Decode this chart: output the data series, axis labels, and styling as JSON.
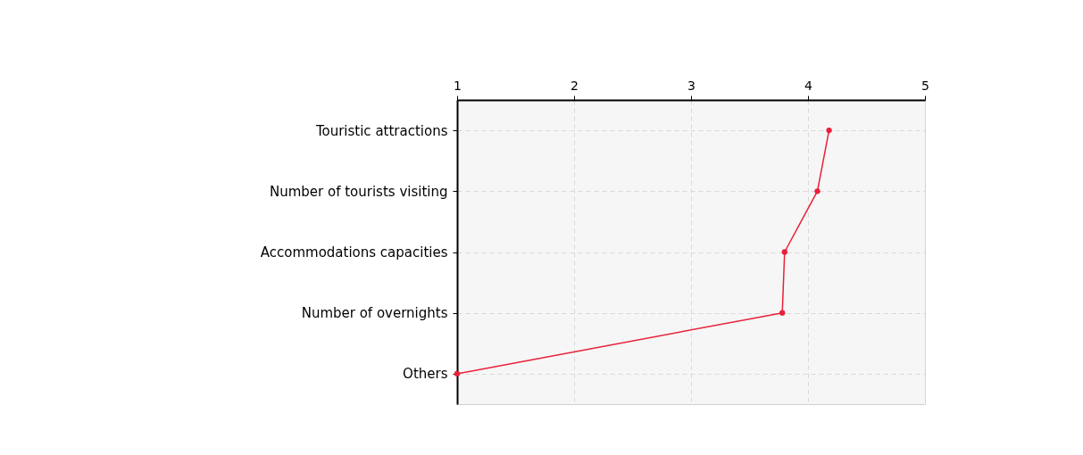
{
  "chart_data": {
    "type": "line",
    "orientation": "horizontal",
    "categories": [
      "Touristic attractions",
      "Number of tourists visiting",
      "Accommodations capacities",
      "Number of overnights",
      "Others"
    ],
    "values": [
      4.18,
      4.08,
      3.8,
      3.78,
      1.0
    ],
    "color": "#e8213a",
    "xlim": [
      1,
      5
    ],
    "xticks": [
      1,
      2,
      3,
      4,
      5
    ],
    "grid": true,
    "marker": "circle"
  }
}
